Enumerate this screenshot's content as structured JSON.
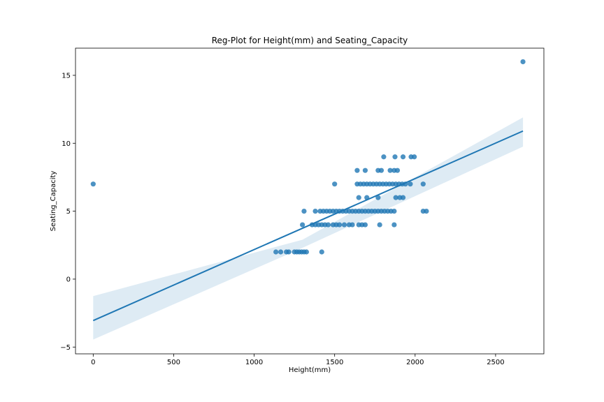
{
  "chart_data": {
    "type": "scatter",
    "title": "Reg-Plot for Height(mm) and Seating_Capacity",
    "xlabel": "Height(mm)",
    "ylabel": "Seating_Capacity",
    "xlim": [
      -110,
      2800
    ],
    "ylim": [
      -5.5,
      17.0
    ],
    "xticks": [
      0,
      500,
      1000,
      1500,
      2000,
      2500
    ],
    "yticks": [
      -5,
      0,
      5,
      10,
      15
    ],
    "grid": false,
    "colors": {
      "points": "#1f77b4",
      "line": "#1f77b4",
      "band": "#1f77b4"
    },
    "regression": {
      "x_start": 0,
      "y_start": -3.05,
      "x_end": 2670,
      "y_end": 10.9,
      "ci_start": [
        -4.45,
        -1.25
      ],
      "ci_mid": [
        2.3,
        2.9
      ],
      "ci_mid_x": 1300,
      "ci_end": [
        9.75,
        11.9
      ]
    },
    "points": [
      {
        "x": 0,
        "y": 7
      },
      {
        "x": 2670,
        "y": 16
      },
      {
        "x": 1135,
        "y": 2
      },
      {
        "x": 1165,
        "y": 2
      },
      {
        "x": 1200,
        "y": 2
      },
      {
        "x": 1215,
        "y": 2
      },
      {
        "x": 1250,
        "y": 2
      },
      {
        "x": 1265,
        "y": 2
      },
      {
        "x": 1280,
        "y": 2
      },
      {
        "x": 1295,
        "y": 2
      },
      {
        "x": 1310,
        "y": 2
      },
      {
        "x": 1325,
        "y": 2
      },
      {
        "x": 1420,
        "y": 2
      },
      {
        "x": 1300,
        "y": 4
      },
      {
        "x": 1360,
        "y": 4
      },
      {
        "x": 1380,
        "y": 4
      },
      {
        "x": 1400,
        "y": 4
      },
      {
        "x": 1420,
        "y": 4
      },
      {
        "x": 1440,
        "y": 4
      },
      {
        "x": 1460,
        "y": 4
      },
      {
        "x": 1490,
        "y": 4
      },
      {
        "x": 1510,
        "y": 4
      },
      {
        "x": 1530,
        "y": 4
      },
      {
        "x": 1560,
        "y": 4
      },
      {
        "x": 1590,
        "y": 4
      },
      {
        "x": 1610,
        "y": 4
      },
      {
        "x": 1650,
        "y": 4
      },
      {
        "x": 1670,
        "y": 4
      },
      {
        "x": 1690,
        "y": 4
      },
      {
        "x": 1780,
        "y": 4
      },
      {
        "x": 1870,
        "y": 4
      },
      {
        "x": 1310,
        "y": 5
      },
      {
        "x": 1380,
        "y": 5
      },
      {
        "x": 1410,
        "y": 5
      },
      {
        "x": 1430,
        "y": 5
      },
      {
        "x": 1450,
        "y": 5
      },
      {
        "x": 1470,
        "y": 5
      },
      {
        "x": 1490,
        "y": 5
      },
      {
        "x": 1510,
        "y": 5
      },
      {
        "x": 1530,
        "y": 5
      },
      {
        "x": 1550,
        "y": 5
      },
      {
        "x": 1570,
        "y": 5
      },
      {
        "x": 1590,
        "y": 5
      },
      {
        "x": 1610,
        "y": 5
      },
      {
        "x": 1630,
        "y": 5
      },
      {
        "x": 1650,
        "y": 5
      },
      {
        "x": 1670,
        "y": 5
      },
      {
        "x": 1690,
        "y": 5
      },
      {
        "x": 1710,
        "y": 5
      },
      {
        "x": 1730,
        "y": 5
      },
      {
        "x": 1750,
        "y": 5
      },
      {
        "x": 1770,
        "y": 5
      },
      {
        "x": 1790,
        "y": 5
      },
      {
        "x": 1810,
        "y": 5
      },
      {
        "x": 1830,
        "y": 5
      },
      {
        "x": 1850,
        "y": 5
      },
      {
        "x": 1870,
        "y": 5
      },
      {
        "x": 2050,
        "y": 5
      },
      {
        "x": 2070,
        "y": 5
      },
      {
        "x": 1650,
        "y": 6
      },
      {
        "x": 1700,
        "y": 6
      },
      {
        "x": 1770,
        "y": 6
      },
      {
        "x": 1880,
        "y": 6
      },
      {
        "x": 1905,
        "y": 6
      },
      {
        "x": 1925,
        "y": 6
      },
      {
        "x": 1500,
        "y": 7
      },
      {
        "x": 1640,
        "y": 7
      },
      {
        "x": 1660,
        "y": 7
      },
      {
        "x": 1680,
        "y": 7
      },
      {
        "x": 1700,
        "y": 7
      },
      {
        "x": 1720,
        "y": 7
      },
      {
        "x": 1740,
        "y": 7
      },
      {
        "x": 1760,
        "y": 7
      },
      {
        "x": 1780,
        "y": 7
      },
      {
        "x": 1800,
        "y": 7
      },
      {
        "x": 1820,
        "y": 7
      },
      {
        "x": 1840,
        "y": 7
      },
      {
        "x": 1860,
        "y": 7
      },
      {
        "x": 1880,
        "y": 7
      },
      {
        "x": 1900,
        "y": 7
      },
      {
        "x": 1920,
        "y": 7
      },
      {
        "x": 1940,
        "y": 7
      },
      {
        "x": 1970,
        "y": 7
      },
      {
        "x": 2050,
        "y": 7
      },
      {
        "x": 1640,
        "y": 8
      },
      {
        "x": 1690,
        "y": 8
      },
      {
        "x": 1770,
        "y": 8
      },
      {
        "x": 1790,
        "y": 8
      },
      {
        "x": 1845,
        "y": 8
      },
      {
        "x": 1870,
        "y": 8
      },
      {
        "x": 1890,
        "y": 8
      },
      {
        "x": 1805,
        "y": 9
      },
      {
        "x": 1875,
        "y": 9
      },
      {
        "x": 1925,
        "y": 9
      },
      {
        "x": 1975,
        "y": 9
      },
      {
        "x": 1995,
        "y": 9
      }
    ]
  }
}
